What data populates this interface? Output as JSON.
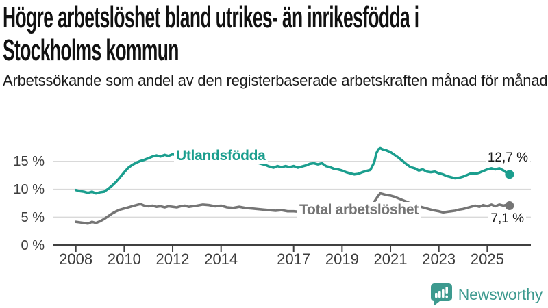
{
  "colors": {
    "accent_teal": "#1b9e8e",
    "series_gray": "#757575",
    "axis": "#404040",
    "grid": "#d9d9d9",
    "label_text": "#1a1a1a",
    "brand_teal": "#3d9a8f"
  },
  "chart_data": {
    "type": "line",
    "title": "Högre arbetslöshet bland utrikes- än inrikesfödda i\nStockholms kommun",
    "subtitle": "Arbetssökande som andel av den registerbaserade arbetskraften månad för månad.",
    "unit": "%",
    "grid": true,
    "legend_position": "inline-labels",
    "x_axis": {
      "ticks": [
        2008,
        2010,
        2012,
        2014,
        2017,
        2019,
        2021,
        2023,
        2025
      ],
      "range": [
        2007.6,
        2026.4
      ]
    },
    "y_axis": {
      "tick_values": [
        0,
        5,
        10,
        15
      ],
      "tick_labels": [
        "0 %",
        "5 %",
        "10 %",
        "15 %"
      ],
      "range": [
        0,
        18.6
      ]
    },
    "series": [
      {
        "name": "Utlandsfödda",
        "color": "#1b9e8e",
        "end_label": "12,7 %",
        "end_value": 12.7,
        "points": [
          [
            2008.0,
            9.9
          ],
          [
            2008.17,
            9.7
          ],
          [
            2008.33,
            9.6
          ],
          [
            2008.5,
            9.4
          ],
          [
            2008.67,
            9.6
          ],
          [
            2008.83,
            9.3
          ],
          [
            2009.0,
            9.5
          ],
          [
            2009.17,
            9.6
          ],
          [
            2009.33,
            10.1
          ],
          [
            2009.5,
            10.7
          ],
          [
            2009.67,
            11.4
          ],
          [
            2009.83,
            12.2
          ],
          [
            2010.0,
            13.1
          ],
          [
            2010.17,
            13.9
          ],
          [
            2010.33,
            14.4
          ],
          [
            2010.5,
            14.8
          ],
          [
            2010.67,
            15.1
          ],
          [
            2010.83,
            15.3
          ],
          [
            2011.0,
            15.6
          ],
          [
            2011.17,
            15.9
          ],
          [
            2011.33,
            16.1
          ],
          [
            2011.5,
            15.9
          ],
          [
            2011.67,
            16.2
          ],
          [
            2011.83,
            16.0
          ],
          [
            2012.0,
            16.3
          ],
          [
            2012.17,
            16.1
          ],
          [
            2012.33,
            16.4
          ],
          [
            2012.58,
            16.2
          ],
          [
            2012.83,
            16.4
          ],
          [
            2013.08,
            16.2
          ],
          [
            2013.33,
            16.3
          ],
          [
            2013.58,
            16.1
          ],
          [
            2013.83,
            15.9
          ],
          [
            2014.08,
            15.8
          ],
          [
            2014.33,
            15.9
          ],
          [
            2014.58,
            15.6
          ],
          [
            2014.83,
            15.3
          ],
          [
            2015.08,
            15.1
          ],
          [
            2015.33,
            14.9
          ],
          [
            2015.58,
            14.7
          ],
          [
            2015.83,
            14.4
          ],
          [
            2016.0,
            14.1
          ],
          [
            2016.17,
            13.9
          ],
          [
            2016.33,
            14.2
          ],
          [
            2016.5,
            14.0
          ],
          [
            2016.67,
            14.2
          ],
          [
            2016.83,
            14.0
          ],
          [
            2017.0,
            14.2
          ],
          [
            2017.17,
            13.9
          ],
          [
            2017.33,
            14.1
          ],
          [
            2017.5,
            14.3
          ],
          [
            2017.67,
            14.6
          ],
          [
            2017.83,
            14.7
          ],
          [
            2018.0,
            14.5
          ],
          [
            2018.17,
            14.7
          ],
          [
            2018.33,
            14.2
          ],
          [
            2018.5,
            14.0
          ],
          [
            2018.67,
            13.7
          ],
          [
            2018.83,
            13.6
          ],
          [
            2019.0,
            13.4
          ],
          [
            2019.17,
            13.1
          ],
          [
            2019.33,
            12.9
          ],
          [
            2019.5,
            12.7
          ],
          [
            2019.67,
            12.8
          ],
          [
            2019.83,
            13.1
          ],
          [
            2020.0,
            13.3
          ],
          [
            2020.17,
            13.5
          ],
          [
            2020.33,
            14.9
          ],
          [
            2020.42,
            16.5
          ],
          [
            2020.5,
            17.2
          ],
          [
            2020.58,
            17.4
          ],
          [
            2020.67,
            17.2
          ],
          [
            2020.83,
            17.0
          ],
          [
            2021.0,
            16.7
          ],
          [
            2021.17,
            16.2
          ],
          [
            2021.33,
            15.7
          ],
          [
            2021.5,
            15.1
          ],
          [
            2021.67,
            14.5
          ],
          [
            2021.83,
            14.0
          ],
          [
            2022.0,
            13.8
          ],
          [
            2022.17,
            13.4
          ],
          [
            2022.33,
            13.6
          ],
          [
            2022.5,
            13.2
          ],
          [
            2022.67,
            13.1
          ],
          [
            2022.83,
            13.2
          ],
          [
            2023.0,
            12.9
          ],
          [
            2023.17,
            12.7
          ],
          [
            2023.33,
            12.4
          ],
          [
            2023.5,
            12.2
          ],
          [
            2023.67,
            12.0
          ],
          [
            2023.83,
            12.1
          ],
          [
            2024.0,
            12.3
          ],
          [
            2024.17,
            12.6
          ],
          [
            2024.33,
            12.9
          ],
          [
            2024.5,
            12.8
          ],
          [
            2024.67,
            13.0
          ],
          [
            2024.83,
            13.3
          ],
          [
            2025.0,
            13.6
          ],
          [
            2025.17,
            13.8
          ],
          [
            2025.33,
            13.6
          ],
          [
            2025.5,
            13.8
          ],
          [
            2025.67,
            13.4
          ],
          [
            2025.83,
            12.9
          ],
          [
            2025.92,
            12.7
          ]
        ]
      },
      {
        "name": "Total arbetslöshet",
        "color": "#757575",
        "end_label": "7,1 %",
        "end_value": 7.1,
        "points": [
          [
            2008.0,
            4.2
          ],
          [
            2008.17,
            4.1
          ],
          [
            2008.33,
            4.0
          ],
          [
            2008.5,
            3.9
          ],
          [
            2008.67,
            4.2
          ],
          [
            2008.83,
            4.0
          ],
          [
            2009.0,
            4.3
          ],
          [
            2009.17,
            4.7
          ],
          [
            2009.33,
            5.2
          ],
          [
            2009.5,
            5.7
          ],
          [
            2009.67,
            6.1
          ],
          [
            2009.83,
            6.4
          ],
          [
            2010.0,
            6.6
          ],
          [
            2010.17,
            6.8
          ],
          [
            2010.33,
            7.0
          ],
          [
            2010.5,
            7.2
          ],
          [
            2010.67,
            7.4
          ],
          [
            2010.83,
            7.1
          ],
          [
            2011.0,
            7.0
          ],
          [
            2011.17,
            7.1
          ],
          [
            2011.33,
            6.9
          ],
          [
            2011.5,
            7.0
          ],
          [
            2011.67,
            6.8
          ],
          [
            2011.83,
            7.0
          ],
          [
            2012.0,
            6.9
          ],
          [
            2012.17,
            6.8
          ],
          [
            2012.33,
            7.0
          ],
          [
            2012.5,
            7.1
          ],
          [
            2012.67,
            6.9
          ],
          [
            2012.83,
            7.0
          ],
          [
            2013.0,
            7.1
          ],
          [
            2013.25,
            7.3
          ],
          [
            2013.5,
            7.2
          ],
          [
            2013.75,
            7.0
          ],
          [
            2014.0,
            7.1
          ],
          [
            2014.25,
            6.8
          ],
          [
            2014.5,
            6.7
          ],
          [
            2014.75,
            6.9
          ],
          [
            2015.0,
            6.7
          ],
          [
            2015.25,
            6.6
          ],
          [
            2015.5,
            6.5
          ],
          [
            2015.75,
            6.4
          ],
          [
            2016.0,
            6.3
          ],
          [
            2016.25,
            6.2
          ],
          [
            2016.5,
            6.3
          ],
          [
            2016.75,
            6.1
          ],
          [
            2017.0,
            6.1
          ],
          [
            2017.25,
            6.0
          ],
          [
            2017.5,
            5.9
          ],
          [
            2017.75,
            5.8
          ],
          [
            2018.0,
            5.7
          ],
          [
            2018.25,
            5.6
          ],
          [
            2018.5,
            5.5
          ],
          [
            2018.75,
            5.6
          ],
          [
            2019.0,
            5.6
          ],
          [
            2019.25,
            5.7
          ],
          [
            2019.5,
            5.8
          ],
          [
            2019.75,
            5.9
          ],
          [
            2020.0,
            6.1
          ],
          [
            2020.17,
            6.7
          ],
          [
            2020.33,
            7.8
          ],
          [
            2020.5,
            8.9
          ],
          [
            2020.58,
            9.3
          ],
          [
            2020.67,
            9.2
          ],
          [
            2020.83,
            9.0
          ],
          [
            2021.0,
            8.9
          ],
          [
            2021.17,
            8.7
          ],
          [
            2021.33,
            8.4
          ],
          [
            2021.5,
            8.1
          ],
          [
            2021.67,
            7.8
          ],
          [
            2021.83,
            7.5
          ],
          [
            2022.0,
            7.2
          ],
          [
            2022.25,
            6.9
          ],
          [
            2022.5,
            6.6
          ],
          [
            2022.75,
            6.3
          ],
          [
            2023.0,
            6.1
          ],
          [
            2023.17,
            5.9
          ],
          [
            2023.33,
            6.0
          ],
          [
            2023.5,
            6.1
          ],
          [
            2023.67,
            6.2
          ],
          [
            2023.83,
            6.4
          ],
          [
            2024.0,
            6.5
          ],
          [
            2024.17,
            6.7
          ],
          [
            2024.33,
            6.9
          ],
          [
            2024.5,
            7.1
          ],
          [
            2024.67,
            6.9
          ],
          [
            2024.83,
            7.2
          ],
          [
            2025.0,
            7.0
          ],
          [
            2025.17,
            7.3
          ],
          [
            2025.33,
            7.0
          ],
          [
            2025.5,
            7.3
          ],
          [
            2025.67,
            7.1
          ],
          [
            2025.83,
            7.3
          ],
          [
            2025.92,
            7.1
          ]
        ]
      }
    ]
  },
  "footer": {
    "brand": "Newsworthy"
  }
}
